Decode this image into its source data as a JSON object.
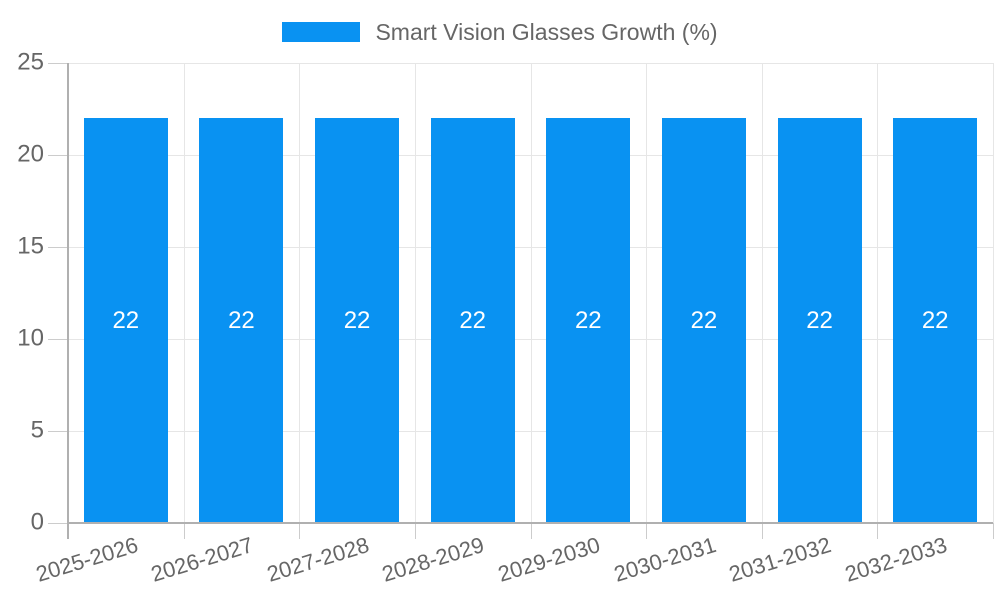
{
  "legend": {
    "label": "Smart Vision Glasses Growth (%)"
  },
  "chart_data": {
    "type": "bar",
    "title": "Smart Vision Glasses Growth (%)",
    "categories": [
      "2025-2026",
      "2026-2027",
      "2027-2028",
      "2028-2029",
      "2029-2030",
      "2030-2031",
      "2031-2032",
      "2032-2033"
    ],
    "series": [
      {
        "name": "Smart Vision Glasses Growth (%)",
        "values": [
          22,
          22,
          22,
          22,
          22,
          22,
          22,
          22
        ]
      }
    ],
    "bar_value_labels": [
      "22",
      "22",
      "22",
      "22",
      "22",
      "22",
      "22",
      "22"
    ],
    "xlabel": "",
    "ylabel": "",
    "ylim": [
      0,
      25
    ],
    "y_ticks": [
      0,
      5,
      10,
      15,
      20,
      25
    ],
    "grid": true,
    "legend_position": "top-center",
    "colors": {
      "bar": "#0992f2",
      "bar_label": "#ffffff",
      "grid_line": "#e6e6e6",
      "axis_line": "#b0b0b0",
      "tick_mark": "#cccccc",
      "tick_text": "#666666",
      "legend_text": "#666666"
    }
  }
}
